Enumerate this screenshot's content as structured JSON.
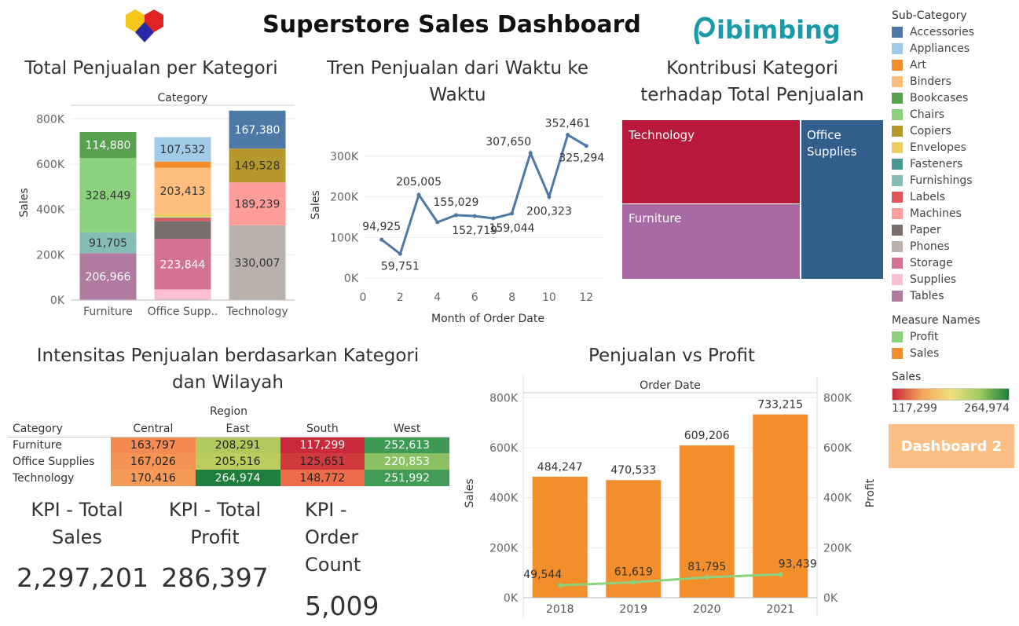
{
  "header": {
    "title": "Superstore Sales Dashboard",
    "brand_text": "ibimbing"
  },
  "sections": {
    "category_sales_title": "Total Penjualan per Kategori",
    "trend_title_line1": "Tren Penjualan dari Waktu ke",
    "trend_title_line2": "Waktu",
    "treemap_title_line1": "Kontribusi Kategori",
    "treemap_title_line2": "terhadap Total Penjualan",
    "heatmap_title_line1": "Intensitas Penjualan berdasarkan Kategori",
    "heatmap_title_line2": "dan Wilayah",
    "salesprofit_title": "Penjualan vs Profit"
  },
  "legend": {
    "subcategory_title": "Sub-Category",
    "subcategories": [
      {
        "name": "Accessories",
        "color": "#4e79a7"
      },
      {
        "name": "Appliances",
        "color": "#a0cbe8"
      },
      {
        "name": "Art",
        "color": "#f28e2b"
      },
      {
        "name": "Binders",
        "color": "#ffbe7d"
      },
      {
        "name": "Bookcases",
        "color": "#59a14f"
      },
      {
        "name": "Chairs",
        "color": "#8cd17d"
      },
      {
        "name": "Copiers",
        "color": "#b6992d"
      },
      {
        "name": "Envelopes",
        "color": "#f1ce63"
      },
      {
        "name": "Fasteners",
        "color": "#499894"
      },
      {
        "name": "Furnishings",
        "color": "#86bcb6"
      },
      {
        "name": "Labels",
        "color": "#e15759"
      },
      {
        "name": "Machines",
        "color": "#ff9d9a"
      },
      {
        "name": "Paper",
        "color": "#79706e"
      },
      {
        "name": "Phones",
        "color": "#bab0ac"
      },
      {
        "name": "Storage",
        "color": "#d37295"
      },
      {
        "name": "Supplies",
        "color": "#fabfd2"
      },
      {
        "name": "Tables",
        "color": "#b07aa1"
      }
    ],
    "measure_title": "Measure Names",
    "measures": [
      {
        "name": "Profit",
        "color": "#8cd17d"
      },
      {
        "name": "Sales",
        "color": "#f28e2b"
      }
    ],
    "sales_scale_title": "Sales",
    "sales_scale_min": "117,299",
    "sales_scale_max": "264,974"
  },
  "dashboard_button": "Dashboard 2",
  "kpis": [
    {
      "title_line1": "KPI - Total",
      "title_line2": "Sales",
      "title_line3": "",
      "value": "2,297,201"
    },
    {
      "title_line1": "KPI - Total",
      "title_line2": "Profit",
      "title_line3": "",
      "value": "286,397"
    },
    {
      "title_line1": "KPI -",
      "title_line2": "Order",
      "title_line3": "Count",
      "value": "5,009"
    }
  ],
  "chart_data": [
    {
      "type": "bar",
      "stacked": true,
      "header": "Category",
      "ylabel": "Sales",
      "ylim": [
        0,
        860000
      ],
      "yticks": [
        {
          "v": 0,
          "label": "0K"
        },
        {
          "v": 200000,
          "label": "200K"
        },
        {
          "v": 400000,
          "label": "400K"
        },
        {
          "v": 600000,
          "label": "600K"
        },
        {
          "v": 800000,
          "label": "800K"
        }
      ],
      "categories": [
        "Furniture",
        "Office Supp..",
        "Technology"
      ],
      "stacks": [
        [
          {
            "sub": "Tables",
            "value": 206966,
            "label": "206,966",
            "color": "#b07aa1",
            "label_color": "#ffffff"
          },
          {
            "sub": "Furnishings",
            "value": 91705,
            "label": "91,705",
            "color": "#86bcb6",
            "label_color": "#333333"
          },
          {
            "sub": "Chairs",
            "value": 328449,
            "label": "328,449",
            "color": "#8cd17d",
            "label_color": "#333333"
          },
          {
            "sub": "Bookcases",
            "value": 114880,
            "label": "114,880",
            "color": "#59a14f",
            "label_color": "#ffffff"
          }
        ],
        [
          {
            "sub": "Supplies",
            "value": 46674,
            "label": "",
            "color": "#fabfd2",
            "label_color": "#333333"
          },
          {
            "sub": "Storage",
            "value": 223844,
            "label": "223,844",
            "color": "#d37295",
            "label_color": "#ffffff"
          },
          {
            "sub": "Paper",
            "value": 78479,
            "label": "",
            "color": "#79706e",
            "label_color": "#ffffff"
          },
          {
            "sub": "Labels",
            "value": 12486,
            "label": "",
            "color": "#e15759",
            "label_color": "#ffffff"
          },
          {
            "sub": "Furnishings",
            "value": 0,
            "label": "",
            "color": "#86bcb6",
            "label_color": "#333333"
          },
          {
            "sub": "Fasteners",
            "value": 3024,
            "label": "",
            "color": "#499894",
            "label_color": "#ffffff"
          },
          {
            "sub": "Envelopes",
            "value": 16476,
            "label": "",
            "color": "#f1ce63",
            "label_color": "#333333"
          },
          {
            "sub": "Binders",
            "value": 203413,
            "label": "203,413",
            "color": "#ffbe7d",
            "label_color": "#333333"
          },
          {
            "sub": "Art",
            "value": 27119,
            "label": "",
            "color": "#f28e2b",
            "label_color": "#ffffff"
          },
          {
            "sub": "Appliances",
            "value": 107532,
            "label": "107,532",
            "color": "#a0cbe8",
            "label_color": "#333333"
          }
        ],
        [
          {
            "sub": "Phones",
            "value": 330007,
            "label": "330,007",
            "color": "#bab0ac",
            "label_color": "#333333"
          },
          {
            "sub": "Machines",
            "value": 189239,
            "label": "189,239",
            "color": "#ff9d9a",
            "label_color": "#333333"
          },
          {
            "sub": "Copiers",
            "value": 149528,
            "label": "149,528",
            "color": "#b6992d",
            "label_color": "#333333"
          },
          {
            "sub": "Accessories",
            "value": 167380,
            "label": "167,380",
            "color": "#4e79a7",
            "label_color": "#ffffff"
          }
        ]
      ]
    },
    {
      "type": "line",
      "xlabel": "Month of Order Date",
      "ylabel": "Sales",
      "xlim": [
        0,
        13
      ],
      "ylim": [
        -15000,
        375000
      ],
      "xticks": [
        0,
        2,
        4,
        6,
        8,
        10,
        12
      ],
      "yticks": [
        {
          "v": 0,
          "label": "0K"
        },
        {
          "v": 100000,
          "label": "100K"
        },
        {
          "v": 200000,
          "label": "200K"
        },
        {
          "v": 300000,
          "label": "300K"
        }
      ],
      "points": [
        {
          "x": 1,
          "y": 94925,
          "label": "94,925"
        },
        {
          "x": 2,
          "y": 59751,
          "label": "59,751"
        },
        {
          "x": 3,
          "y": 205005,
          "label": "205,005"
        },
        {
          "x": 4,
          "y": 137762,
          "label": ""
        },
        {
          "x": 5,
          "y": 155029,
          "label": "155,029"
        },
        {
          "x": 6,
          "y": 152719,
          "label": "152,719"
        },
        {
          "x": 7,
          "y": 147238,
          "label": ""
        },
        {
          "x": 8,
          "y": 159044,
          "label": "159,044"
        },
        {
          "x": 9,
          "y": 307650,
          "label": "307,650"
        },
        {
          "x": 10,
          "y": 200323,
          "label": "200,323"
        },
        {
          "x": 11,
          "y": 352461,
          "label": "352,461"
        },
        {
          "x": 12,
          "y": 325294,
          "label": "325,294"
        }
      ]
    },
    {
      "type": "treemap",
      "cells": [
        {
          "name": "Technology",
          "color": "#b8193b"
        },
        {
          "name": "Furniture",
          "color": "#a86aa4"
        },
        {
          "name_line1": "Office",
          "name_line2": "Supplies",
          "color": "#325e8c"
        }
      ]
    },
    {
      "type": "heatmap",
      "header": "Region",
      "row_header": "Category",
      "columns": [
        "Central",
        "East",
        "South",
        "West"
      ],
      "rows": [
        {
          "name": "Furniture",
          "values": [
            "163,797",
            "208,291",
            "117,299",
            "252,613"
          ],
          "colors": [
            "#f58a52",
            "#b3c95d",
            "#c9283b",
            "#3e9a55"
          ]
        },
        {
          "name": "Office Supplies",
          "values": [
            "167,026",
            "205,516",
            "125,651",
            "220,853"
          ],
          "colors": [
            "#f59355",
            "#bccd60",
            "#cf3a3f",
            "#8cc163"
          ]
        },
        {
          "name": "Technology",
          "values": [
            "170,416",
            "264,974",
            "148,772",
            "251,992"
          ],
          "colors": [
            "#f59a57",
            "#1e7f3c",
            "#ec6c4a",
            "#3f9b55"
          ]
        }
      ]
    },
    {
      "type": "bar+line",
      "header": "Order Date",
      "ylabel_left": "Sales",
      "ylabel_right": "Profit",
      "ylim": [
        0,
        820000
      ],
      "yticks": [
        {
          "v": 0,
          "label": "0K"
        },
        {
          "v": 200000,
          "label": "200K"
        },
        {
          "v": 400000,
          "label": "400K"
        },
        {
          "v": 600000,
          "label": "600K"
        },
        {
          "v": 800000,
          "label": "800K"
        }
      ],
      "categories": [
        "2018",
        "2019",
        "2020",
        "2021"
      ],
      "series": [
        {
          "name": "Sales",
          "kind": "bar",
          "color": "#f28e2b",
          "values": [
            484247,
            470533,
            609206,
            733215
          ],
          "labels": [
            "484,247",
            "470,533",
            "609,206",
            "733,215"
          ]
        },
        {
          "name": "Profit",
          "kind": "line",
          "color": "#8cd17d",
          "values": [
            49544,
            61619,
            81795,
            93439
          ],
          "labels": [
            "49,544",
            "61,619",
            "81,795",
            "93,439"
          ]
        }
      ]
    }
  ]
}
